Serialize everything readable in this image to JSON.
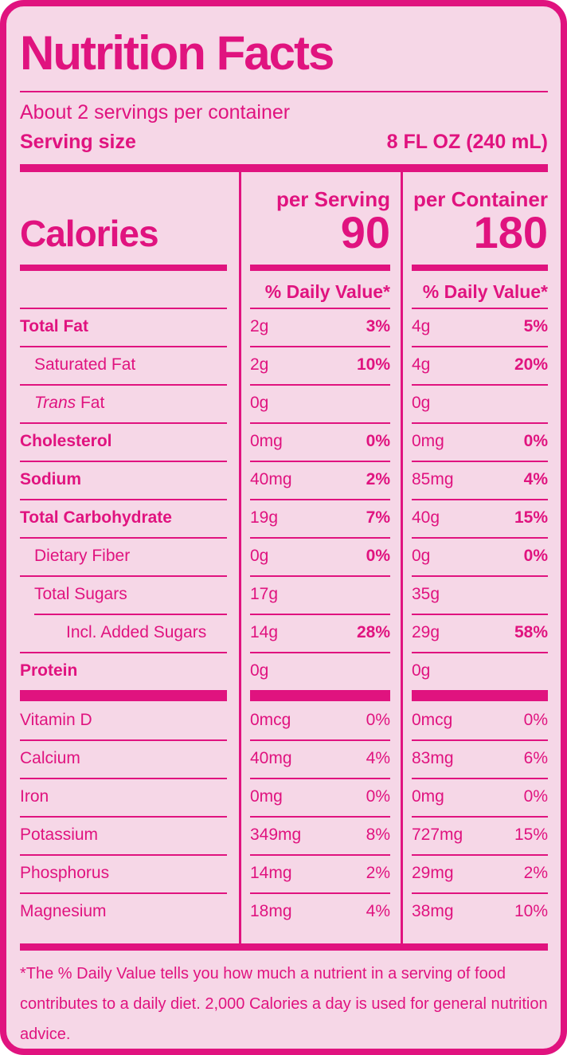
{
  "label": {
    "title": "Nutrition Facts",
    "servings_per_container": "About 2 servings per container",
    "serving_size_label": "Serving size",
    "serving_size_value": "8 FL OZ (240 mL)",
    "calories_label": "Calories",
    "columns": [
      {
        "header": "per Serving",
        "calories": "90",
        "dv_header": "% Daily Value*"
      },
      {
        "header": "per Container",
        "calories": "180",
        "dv_header": "% Daily Value*"
      }
    ],
    "rows": [
      {
        "name": "Total Fat",
        "bold": true,
        "indent": 0,
        "amount_serving": "2g",
        "dv_serving": "3%",
        "amount_container": "4g",
        "dv_container": "5%",
        "dv_bold": true
      },
      {
        "name": "Saturated Fat",
        "bold": false,
        "indent": 1,
        "amount_serving": "2g",
        "dv_serving": "10%",
        "amount_container": "4g",
        "dv_container": "20%",
        "dv_bold": true
      },
      {
        "name": "Trans Fat",
        "italic_prefix": "Trans",
        "bold": false,
        "indent": 1,
        "amount_serving": "0g",
        "dv_serving": "",
        "amount_container": "0g",
        "dv_container": "",
        "dv_bold": false
      },
      {
        "name": "Cholesterol",
        "bold": true,
        "indent": 0,
        "amount_serving": "0mg",
        "dv_serving": "0%",
        "amount_container": "0mg",
        "dv_container": "0%",
        "dv_bold": true
      },
      {
        "name": "Sodium",
        "bold": true,
        "indent": 0,
        "amount_serving": "40mg",
        "dv_serving": "2%",
        "amount_container": "85mg",
        "dv_container": "4%",
        "dv_bold": true
      },
      {
        "name": "Total Carbohydrate",
        "bold": true,
        "indent": 0,
        "amount_serving": "19g",
        "dv_serving": "7%",
        "amount_container": "40g",
        "dv_container": "15%",
        "dv_bold": true
      },
      {
        "name": "Dietary Fiber",
        "bold": false,
        "indent": 1,
        "amount_serving": "0g",
        "dv_serving": "0%",
        "amount_container": "0g",
        "dv_container": "0%",
        "dv_bold": true
      },
      {
        "name": "Total Sugars",
        "bold": false,
        "indent": 1,
        "amount_serving": "17g",
        "dv_serving": "",
        "amount_container": "35g",
        "dv_container": "",
        "dv_bold": false
      },
      {
        "name": "Incl. Added Sugars",
        "bold": false,
        "indent": 2,
        "rule_indent": true,
        "amount_serving": "14g",
        "dv_serving": "28%",
        "amount_container": "29g",
        "dv_container": "58%",
        "dv_bold": true
      },
      {
        "name": "Protein",
        "bold": true,
        "indent": 0,
        "amount_serving": "0g",
        "dv_serving": "",
        "amount_container": "0g",
        "dv_container": "",
        "dv_bold": false
      },
      {
        "type": "bar"
      },
      {
        "name": "Vitamin D",
        "bold": false,
        "indent": 0,
        "no_rule": true,
        "amount_serving": "0mcg",
        "dv_serving": "0%",
        "amount_container": "0mcg",
        "dv_container": "0%",
        "dv_bold": false
      },
      {
        "name": "Calcium",
        "bold": false,
        "indent": 0,
        "amount_serving": "40mg",
        "dv_serving": "4%",
        "amount_container": "83mg",
        "dv_container": "6%",
        "dv_bold": false
      },
      {
        "name": "Iron",
        "bold": false,
        "indent": 0,
        "amount_serving": "0mg",
        "dv_serving": "0%",
        "amount_container": "0mg",
        "dv_container": "0%",
        "dv_bold": false
      },
      {
        "name": "Potassium",
        "bold": false,
        "indent": 0,
        "amount_serving": "349mg",
        "dv_serving": "8%",
        "amount_container": "727mg",
        "dv_container": "15%",
        "dv_bold": false
      },
      {
        "name": "Phosphorus",
        "bold": false,
        "indent": 0,
        "amount_serving": "14mg",
        "dv_serving": "2%",
        "amount_container": "29mg",
        "dv_container": "2%",
        "dv_bold": false
      },
      {
        "name": "Magnesium",
        "bold": false,
        "indent": 0,
        "amount_serving": "18mg",
        "dv_serving": "4%",
        "amount_container": "38mg",
        "dv_container": "10%",
        "dv_bold": false
      }
    ],
    "footnote": "*The % Daily Value tells you how much a nutrient in a serving of food contributes to a daily diet. 2,000 Calories a day is used for general nutrition advice.",
    "colors": {
      "accent": "#e0137f",
      "background": "#f6d7e7"
    }
  }
}
